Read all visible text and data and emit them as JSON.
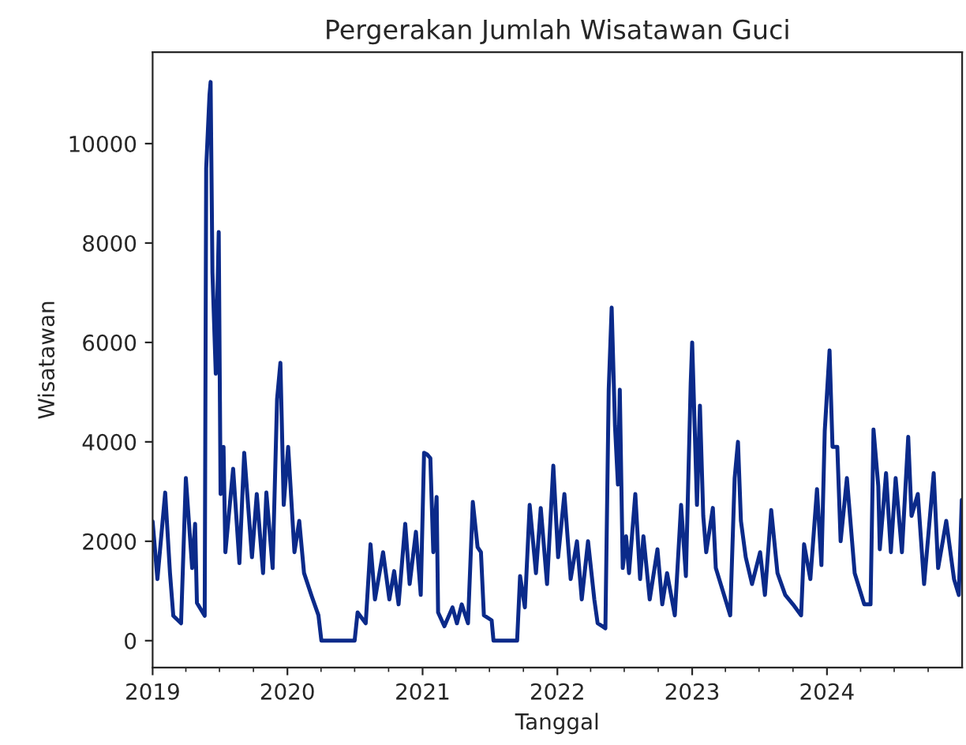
{
  "chart_data": {
    "type": "line",
    "title": "Pergerakan Jumlah Wisatawan Guci",
    "xlabel": "Tanggal",
    "ylabel": "Wisatawan",
    "x": [
      "2019-01-01",
      "2019-01-14",
      "2019-02-04",
      "2019-02-17",
      "2019-02-26",
      "2019-03-19",
      "2019-04-01",
      "2019-04-18",
      "2019-04-26",
      "2019-05-01",
      "2019-05-22",
      "2019-05-26",
      "2019-06-04",
      "2019-06-07",
      "2019-06-12",
      "2019-06-21",
      "2019-06-29",
      "2019-07-04",
      "2019-07-12",
      "2019-07-17",
      "2019-08-07",
      "2019-08-24",
      "2019-09-06",
      "2019-09-27",
      "2019-10-10",
      "2019-10-27",
      "2019-11-05",
      "2019-11-22",
      "2019-12-04",
      "2019-12-13",
      "2019-12-22",
      "2020-01-03",
      "2020-01-20",
      "2020-02-02",
      "2020-02-15",
      "2020-03-07",
      "2020-03-25",
      "2020-04-02",
      "2020-07-01",
      "2020-07-09",
      "2020-07-31",
      "2020-08-13",
      "2020-08-25",
      "2020-09-16",
      "2020-10-03",
      "2020-10-16",
      "2020-10-28",
      "2020-11-15",
      "2020-11-27",
      "2020-12-14",
      "2020-12-27",
      "2021-01-05",
      "2021-01-13",
      "2021-01-22",
      "2021-01-30",
      "2021-02-08",
      "2021-02-12",
      "2021-03-01",
      "2021-03-23",
      "2021-04-04",
      "2021-04-17",
      "2021-05-04",
      "2021-05-17",
      "2021-05-30",
      "2021-06-08",
      "2021-06-16",
      "2021-07-07",
      "2021-07-12",
      "2021-09-14",
      "2021-09-22",
      "2021-10-05",
      "2021-10-18",
      "2021-11-04",
      "2021-11-17",
      "2021-12-04",
      "2021-12-21",
      "2022-01-03",
      "2022-01-20",
      "2022-02-06",
      "2022-02-23",
      "2022-03-08",
      "2022-03-25",
      "2022-04-11",
      "2022-04-20",
      "2022-05-11",
      "2022-05-20",
      "2022-05-28",
      "2022-06-06",
      "2022-06-14",
      "2022-06-19",
      "2022-06-27",
      "2022-07-06",
      "2022-07-14",
      "2022-07-31",
      "2022-08-13",
      "2022-08-22",
      "2022-09-08",
      "2022-09-29",
      "2022-10-12",
      "2022-10-25",
      "2022-11-15",
      "2022-12-02",
      "2022-12-15",
      "2022-12-28",
      "2023-01-01",
      "2023-01-14",
      "2023-01-22",
      "2023-01-31",
      "2023-02-08",
      "2023-02-26",
      "2023-03-06",
      "2023-03-23",
      "2023-04-14",
      "2023-04-26",
      "2023-05-05",
      "2023-05-13",
      "2023-05-26",
      "2023-06-12",
      "2023-07-04",
      "2023-07-17",
      "2023-08-03",
      "2023-08-20",
      "2023-09-10",
      "2023-10-01",
      "2023-10-23",
      "2023-10-31",
      "2023-11-17",
      "2023-12-05",
      "2023-12-17",
      "2023-12-26",
      "2024-01-08",
      "2024-01-16",
      "2024-01-29",
      "2024-02-07",
      "2024-02-24",
      "2024-03-16",
      "2024-04-11",
      "2024-04-28",
      "2024-05-06",
      "2024-05-19",
      "2024-05-23",
      "2024-06-09",
      "2024-06-22",
      "2024-07-05",
      "2024-07-22",
      "2024-08-08",
      "2024-08-17",
      "2024-09-03",
      "2024-09-20",
      "2024-10-16",
      "2024-10-28",
      "2024-11-19",
      "2024-12-10",
      "2024-12-23",
      "2024-12-31"
    ],
    "series": [
      {
        "color": "#0b2a8a",
        "values": [
          2400,
          1240,
          2980,
          1360,
          500,
          350,
          3270,
          1460,
          2350,
          760,
          500,
          9500,
          10980,
          11240,
          7400,
          5370,
          8220,
          2950,
          3900,
          1780,
          3460,
          1560,
          3780,
          1680,
          2950,
          1360,
          2980,
          1460,
          4860,
          5590,
          2730,
          3900,
          1780,
          2410,
          1360,
          890,
          510,
          0,
          0,
          570,
          350,
          1940,
          830,
          1780,
          830,
          1400,
          730,
          2350,
          1140,
          2190,
          920,
          3780,
          3750,
          3670,
          1780,
          2890,
          570,
          290,
          670,
          350,
          730,
          350,
          2790,
          1880,
          1780,
          510,
          410,
          0,
          0,
          1300,
          670,
          2730,
          1360,
          2670,
          1140,
          3520,
          1680,
          2950,
          1240,
          2000,
          830,
          2000,
          830,
          350,
          250,
          5050,
          6700,
          4320,
          3140,
          5050,
          1460,
          2100,
          1360,
          2950,
          1240,
          2100,
          830,
          1840,
          730,
          1360,
          510,
          2730,
          1300,
          5170,
          6000,
          2730,
          4730,
          2510,
          1780,
          2670,
          1460,
          1050,
          510,
          3270,
          4000,
          2410,
          1680,
          1140,
          1780,
          920,
          2630,
          1360,
          920,
          730,
          510,
          1940,
          1240,
          3050,
          1520,
          4220,
          5840,
          3900,
          3900,
          2000,
          3270,
          1360,
          730,
          730,
          4250,
          3110,
          1840,
          3370,
          1780,
          3270,
          1780,
          4100,
          2510,
          2950,
          1140,
          3370,
          1460,
          2410,
          1240,
          920,
          2830
        ]
      }
    ],
    "xlim": [
      "2019-01-01",
      "2025-01-01"
    ],
    "xticks": [
      {
        "value": "2019",
        "label": "2019"
      },
      {
        "value": "2020",
        "label": "2020"
      },
      {
        "value": "2021",
        "label": "2021"
      },
      {
        "value": "2022",
        "label": "2022"
      },
      {
        "value": "2023",
        "label": "2023"
      },
      {
        "value": "2024",
        "label": "2024"
      }
    ],
    "ylim": [
      -540,
      11840
    ],
    "yticks": [
      0,
      2000,
      4000,
      6000,
      8000,
      10000
    ],
    "grid": false,
    "marker": "none",
    "line_style": "solid"
  }
}
